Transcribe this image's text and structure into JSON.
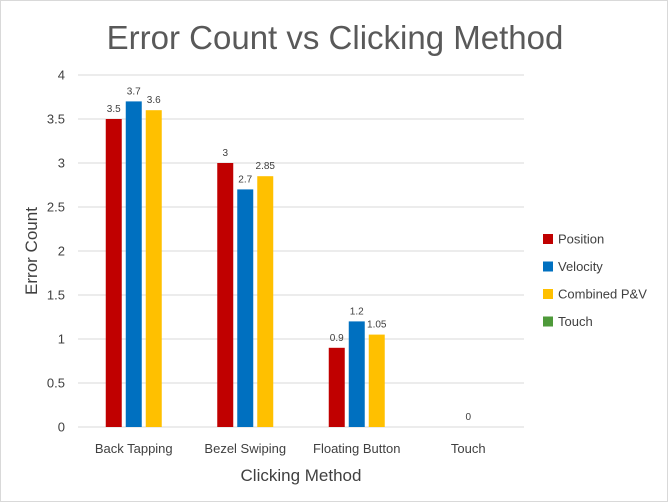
{
  "chart_data": {
    "type": "bar",
    "title": "Error Count vs Clicking Method",
    "xlabel": "Clicking Method",
    "ylabel": "Error Count",
    "ylim": [
      0,
      4
    ],
    "yticks": [
      0,
      0.5,
      1,
      1.5,
      2,
      2.5,
      3,
      3.5,
      4
    ],
    "grid": true,
    "legend_position": "right",
    "categories": [
      "Back Tapping",
      "Bezel Swiping",
      "Floating Button",
      "Touch"
    ],
    "series": [
      {
        "name": "Position",
        "color": "#C00000",
        "values": [
          3.5,
          3,
          0.9,
          null
        ],
        "labels": [
          "3.5",
          "3",
          "0.9",
          ""
        ]
      },
      {
        "name": "Velocity",
        "color": "#0070C0",
        "values": [
          3.7,
          2.7,
          1.2,
          null
        ],
        "labels": [
          "3.7",
          "2.7",
          "1.2",
          ""
        ]
      },
      {
        "name": "Combined P&V",
        "color": "#FFC000",
        "values": [
          3.6,
          2.85,
          1.05,
          null
        ],
        "labels": [
          "3.6",
          "2.85",
          "1.05",
          ""
        ]
      },
      {
        "name": "Touch",
        "color": "#4E9A3A",
        "values": [
          null,
          null,
          null,
          0
        ],
        "labels": [
          "",
          "",
          "",
          "0"
        ]
      }
    ]
  }
}
